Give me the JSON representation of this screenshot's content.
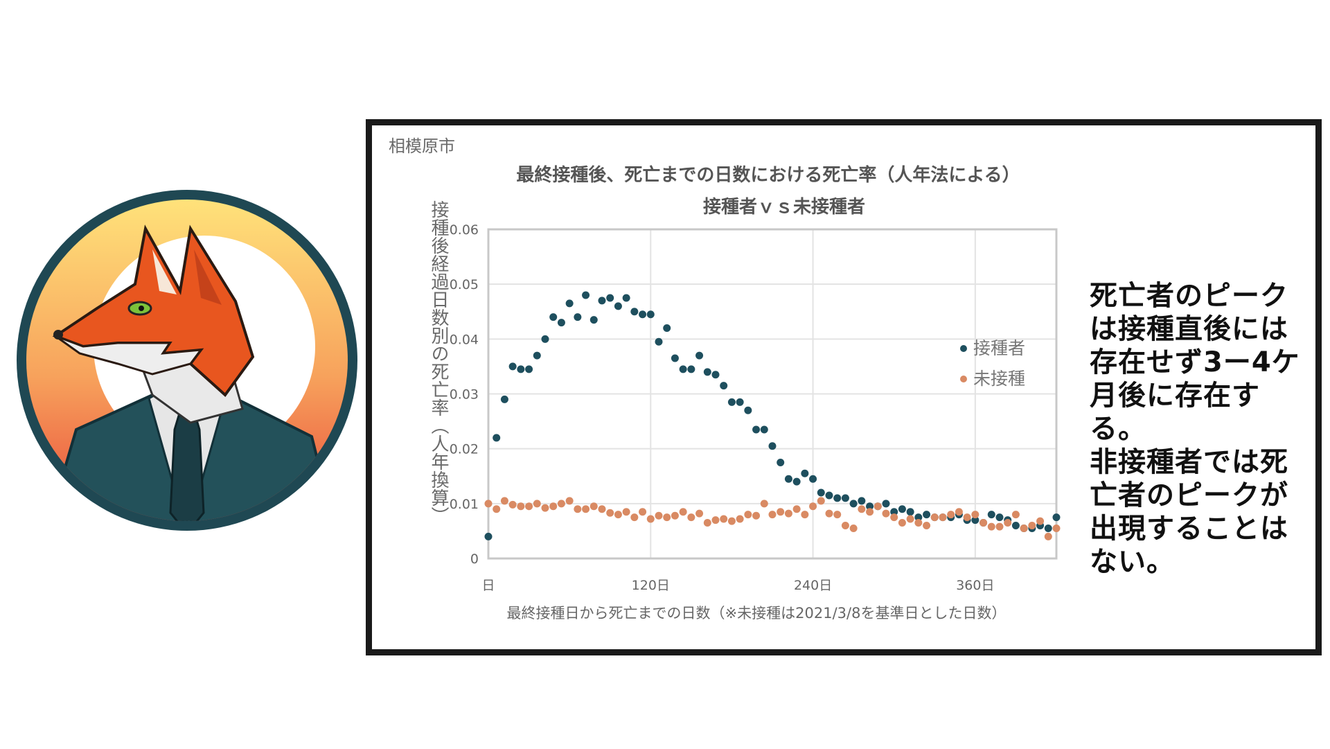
{
  "logo": {
    "icon": "fox-in-suit-logo",
    "colors": {
      "ring": "#1f4853",
      "sun_top": "#ffe27a",
      "sun_bottom": "#e84a3a",
      "fox": "#e8561f",
      "suit": "#23515a",
      "eye": "#7cc23a"
    }
  },
  "chart_panel": {
    "city_label": "相模原市",
    "note": "死亡者のピーク\nは接種直後には\n存在せず3ー4ケ\n月後に存在する。\n非接種者では死\n亡者のピークが\n出現することは\nない。"
  },
  "chart_data": {
    "type": "scatter",
    "title": "最終接種後、死亡までの日数における死亡率（人年法による）",
    "subtitle": "接種者ｖｓ未接種者",
    "ylabel": "接種後経過日数別の死亡率（人年換算）",
    "xlabel": "最終接種日から死亡までの日数（※未接種は2021/3/8を基準日とした日数）",
    "xlim": [
      0,
      420
    ],
    "ylim": [
      0,
      0.06
    ],
    "x_ticks": [
      {
        "value": 0,
        "label": "日"
      },
      {
        "value": 120,
        "label": "120日"
      },
      {
        "value": 240,
        "label": "240日"
      },
      {
        "value": 360,
        "label": "360日"
      }
    ],
    "y_ticks": [
      {
        "value": 0,
        "label": "0"
      },
      {
        "value": 0.01,
        "label": "0.01"
      },
      {
        "value": 0.02,
        "label": "0.02"
      },
      {
        "value": 0.03,
        "label": "0.03"
      },
      {
        "value": 0.04,
        "label": "0.04"
      },
      {
        "value": 0.05,
        "label": "0.05"
      },
      {
        "value": 0.06,
        "label": "0.06"
      }
    ],
    "grid": true,
    "legend_position": "right",
    "series": [
      {
        "name": "接種者",
        "color": "#1e4f5e",
        "x": [
          0,
          6,
          12,
          18,
          24,
          30,
          36,
          42,
          48,
          54,
          60,
          66,
          72,
          78,
          84,
          90,
          96,
          102,
          108,
          114,
          120,
          126,
          132,
          138,
          144,
          150,
          156,
          162,
          168,
          174,
          180,
          186,
          192,
          198,
          204,
          210,
          216,
          222,
          228,
          234,
          240,
          246,
          252,
          258,
          264,
          270,
          276,
          282,
          288,
          294,
          300,
          306,
          312,
          318,
          324,
          330,
          336,
          342,
          348,
          354,
          360,
          366,
          372,
          378,
          384,
          390,
          396,
          402,
          408,
          414,
          420
        ],
        "y": [
          0.004,
          0.022,
          0.029,
          0.035,
          0.0345,
          0.0345,
          0.037,
          0.04,
          0.044,
          0.043,
          0.0465,
          0.044,
          0.048,
          0.0435,
          0.047,
          0.0475,
          0.046,
          0.0475,
          0.045,
          0.0445,
          0.0445,
          0.0395,
          0.042,
          0.0365,
          0.0345,
          0.0345,
          0.037,
          0.034,
          0.0335,
          0.0315,
          0.0285,
          0.0285,
          0.027,
          0.0235,
          0.0235,
          0.0205,
          0.0175,
          0.0145,
          0.014,
          0.0155,
          0.0145,
          0.012,
          0.0115,
          0.011,
          0.011,
          0.01,
          0.0105,
          0.0095,
          0.0095,
          0.01,
          0.0085,
          0.009,
          0.0085,
          0.0075,
          0.008,
          0.0075,
          0.0075,
          0.0075,
          0.008,
          0.007,
          0.007,
          0.0065,
          0.008,
          0.0075,
          0.007,
          0.006,
          0.0055,
          0.0055,
          0.006,
          0.0055,
          0.0075
        ]
      },
      {
        "name": "未接種",
        "color": "#d98a63",
        "x": [
          0,
          6,
          12,
          18,
          24,
          30,
          36,
          42,
          48,
          54,
          60,
          66,
          72,
          78,
          84,
          90,
          96,
          102,
          108,
          114,
          120,
          126,
          132,
          138,
          144,
          150,
          156,
          162,
          168,
          174,
          180,
          186,
          192,
          198,
          204,
          210,
          216,
          222,
          228,
          234,
          240,
          246,
          252,
          258,
          264,
          270,
          276,
          282,
          288,
          294,
          300,
          306,
          312,
          318,
          324,
          330,
          336,
          342,
          348,
          354,
          360,
          366,
          372,
          378,
          384,
          390,
          396,
          402,
          408,
          414,
          420
        ],
        "y": [
          0.01,
          0.009,
          0.0105,
          0.0098,
          0.0095,
          0.0095,
          0.01,
          0.0092,
          0.0095,
          0.01,
          0.0105,
          0.009,
          0.009,
          0.0095,
          0.009,
          0.0083,
          0.008,
          0.0085,
          0.0075,
          0.0085,
          0.0072,
          0.0078,
          0.0075,
          0.0078,
          0.0085,
          0.0075,
          0.0082,
          0.0065,
          0.007,
          0.0072,
          0.0068,
          0.0072,
          0.008,
          0.0078,
          0.01,
          0.008,
          0.0085,
          0.0082,
          0.009,
          0.008,
          0.0095,
          0.0105,
          0.0082,
          0.008,
          0.006,
          0.0055,
          0.009,
          0.0085,
          0.0095,
          0.0082,
          0.0075,
          0.0065,
          0.0072,
          0.0065,
          0.006,
          0.0075,
          0.0075,
          0.008,
          0.0085,
          0.0075,
          0.008,
          0.0065,
          0.0058,
          0.0058,
          0.0065,
          0.008,
          0.0055,
          0.006,
          0.0068,
          0.004,
          0.0055
        ]
      }
    ]
  }
}
